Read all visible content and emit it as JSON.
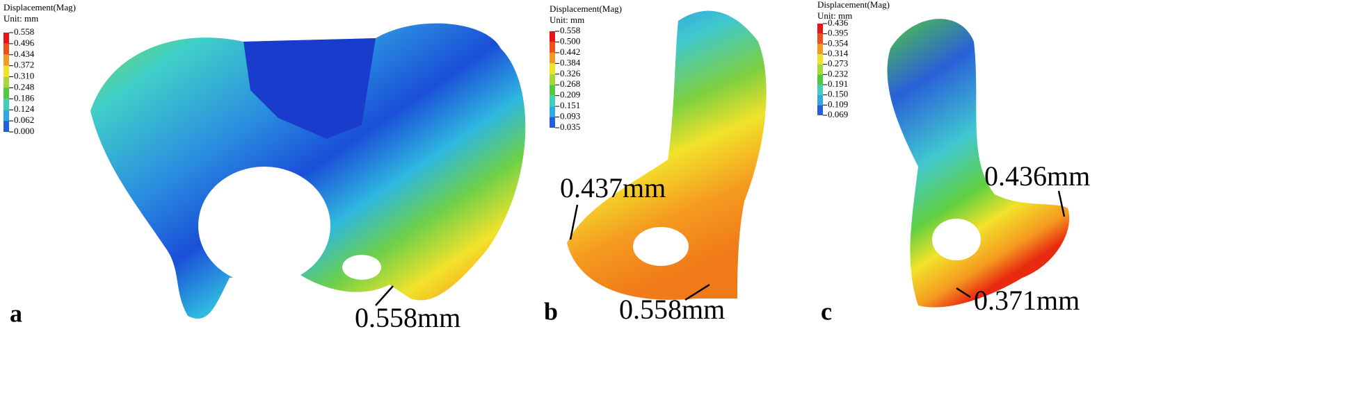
{
  "panels": [
    {
      "letter": "a",
      "legend": {
        "title": "Displacement(Mag)",
        "unit": "Unit: mm",
        "labels": [
          "0.558",
          "0.496",
          "0.434",
          "0.372",
          "0.310",
          "0.248",
          "0.186",
          "0.124",
          "0.062",
          "0.000"
        ]
      },
      "annotations": [
        "0.558mm"
      ]
    },
    {
      "letter": "b",
      "legend": {
        "title": "Displacement(Mag)",
        "unit": "Unit: mm",
        "labels": [
          "0.558",
          "0.500",
          "0.442",
          "0.384",
          "0.326",
          "0.268",
          "0.209",
          "0.151",
          "0.093",
          "0.035"
        ]
      },
      "annotations": [
        "0.437mm",
        "0.558mm"
      ]
    },
    {
      "letter": "c",
      "legend": {
        "title": "Displacement(Mag)",
        "unit": "Unit: mm",
        "labels": [
          "0.436",
          "0.395",
          "0.354",
          "0.314",
          "0.273",
          "0.232",
          "0.191",
          "0.150",
          "0.109",
          "0.069"
        ]
      },
      "annotations": [
        "0.436mm",
        "0.371mm"
      ]
    }
  ]
}
